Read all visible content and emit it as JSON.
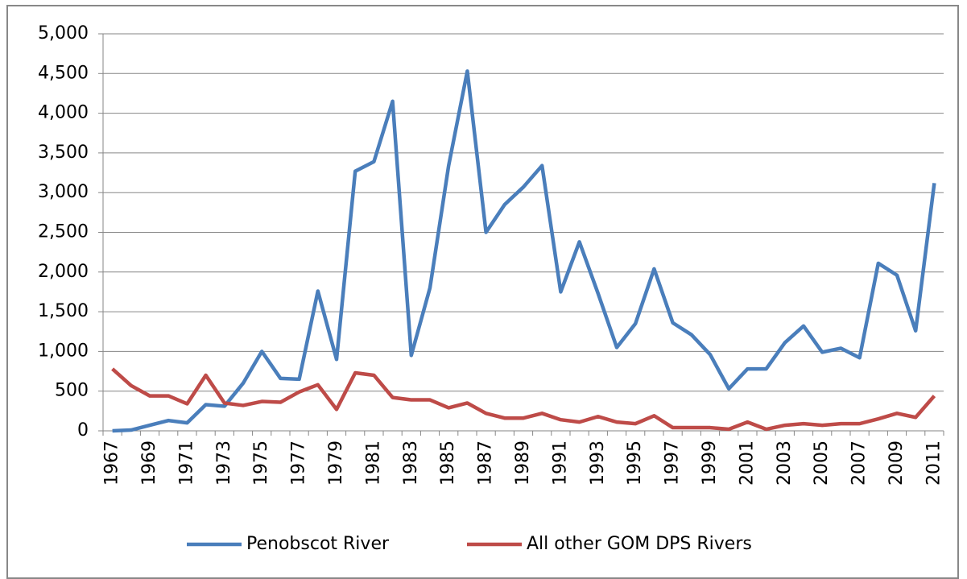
{
  "chart_data": {
    "type": "line",
    "categories": [
      "1967",
      null,
      "1969",
      null,
      "1971",
      null,
      "1973",
      null,
      "1975",
      null,
      "1977",
      null,
      "1979",
      null,
      "1981",
      null,
      "1983",
      null,
      "1985",
      null,
      "1987",
      null,
      "1989",
      null,
      "1991",
      null,
      "1993",
      null,
      "1995",
      null,
      "1997",
      null,
      "1999",
      null,
      "2001",
      null,
      "2003",
      null,
      "2005",
      null,
      "2007",
      null,
      "2009",
      null,
      "2011"
    ],
    "series": [
      {
        "name": "Penobscot River",
        "color": "#4a7ebb",
        "values": [
          0,
          10,
          70,
          130,
          100,
          330,
          310,
          600,
          1000,
          660,
          650,
          1760,
          900,
          3270,
          3390,
          4150,
          950,
          1800,
          3340,
          4530,
          2500,
          2850,
          3070,
          3340,
          1750,
          2380,
          1730,
          1050,
          1350,
          2040,
          1360,
          1210,
          960,
          530,
          780,
          780,
          1110,
          1320,
          990,
          1040,
          920,
          2110,
          1960,
          1260,
          3120
        ]
      },
      {
        "name": "All other GOM DPS Rivers",
        "color": "#be4b48",
        "values": [
          780,
          570,
          440,
          440,
          340,
          700,
          350,
          320,
          370,
          360,
          490,
          580,
          270,
          730,
          700,
          420,
          390,
          390,
          290,
          350,
          220,
          160,
          160,
          220,
          140,
          110,
          180,
          110,
          90,
          190,
          40,
          40,
          40,
          20,
          110,
          20,
          70,
          90,
          70,
          90,
          90,
          150,
          220,
          170,
          440
        ]
      }
    ],
    "ylim": [
      0,
      5000
    ],
    "yticks": [
      0,
      500,
      {
        "value": 1000,
        "label": "1,000"
      },
      {
        "value": 1500,
        "label": "1,500"
      },
      {
        "value": 2000,
        "label": "2,000"
      },
      {
        "value": 2500,
        "label": "2,500"
      },
      {
        "value": 3000,
        "label": "3,000"
      },
      {
        "value": 3500,
        "label": "3,500"
      },
      {
        "value": 4000,
        "label": "4,000"
      },
      {
        "value": 4500,
        "label": "4,500"
      },
      {
        "value": 5000,
        "label": "5,000"
      }
    ],
    "grid": true,
    "legend": "bottom"
  }
}
